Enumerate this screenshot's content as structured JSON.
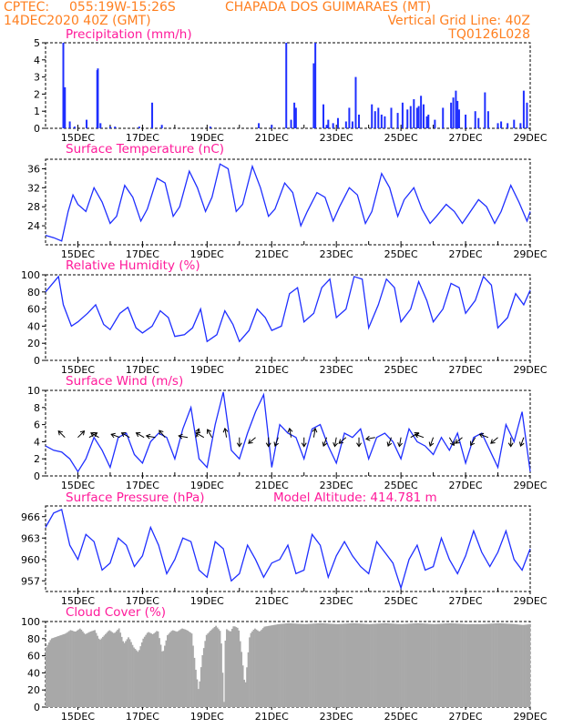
{
  "header": {
    "line1_left": "CPTEC:",
    "line1_coords": "055:19W-15:26S",
    "line1_station": "CHAPADA DOS GUIMARAES (MT)",
    "line2_date": "14DEC2020 40Z (GMT)",
    "line2_grid": "Vertical Grid Line: 40Z",
    "line3_code": "TQ0126L028"
  },
  "colors": {
    "header": "#ff7f1f",
    "title": "#ff1a9a",
    "series": "#1f2fff",
    "cloud": "#a8a8a8",
    "axis": "#000000"
  },
  "x_axis": {
    "labels": [
      "15DEC",
      "17DEC",
      "19DEC",
      "21DEC",
      "23DEC",
      "25DEC",
      "27DEC",
      "29DEC"
    ],
    "day_start": 14,
    "day_end": 29
  },
  "chart_data": [
    {
      "type": "bar",
      "title": "Precipitation (mm/h)",
      "ylim": [
        0,
        5
      ],
      "yticks": [
        0,
        1,
        2,
        3,
        4,
        5
      ],
      "x": [
        14.55,
        14.6,
        14.75,
        14.9,
        15.27,
        15.6,
        15.62,
        15.7,
        16.0,
        16.15,
        16.9,
        17.3,
        17.6,
        19.1,
        20.6,
        21.0,
        21.45,
        21.6,
        21.7,
        21.75,
        22.3,
        22.35,
        22.6,
        22.7,
        22.75,
        22.9,
        23.05,
        23.3,
        23.4,
        23.5,
        23.6,
        23.7,
        24.1,
        24.2,
        24.3,
        24.4,
        24.5,
        24.7,
        24.9,
        25.05,
        25.2,
        25.3,
        25.4,
        25.5,
        25.55,
        25.62,
        25.7,
        25.8,
        25.85,
        26.05,
        26.3,
        26.55,
        26.62,
        26.7,
        26.75,
        26.8,
        27.0,
        27.3,
        27.4,
        27.6,
        27.7,
        28.0,
        28.1,
        28.3,
        28.5,
        28.7,
        28.8,
        28.9
      ],
      "values": [
        5.0,
        2.4,
        0.4,
        0.1,
        0.5,
        3.4,
        3.5,
        0.3,
        0.1,
        0.1,
        0.1,
        1.5,
        0.2,
        0.1,
        0.3,
        0.2,
        5.0,
        0.5,
        1.5,
        1.2,
        3.8,
        5.0,
        1.4,
        0.2,
        0.5,
        0.3,
        0.6,
        0.4,
        1.2,
        0.4,
        3.0,
        0.8,
        1.4,
        1.0,
        1.2,
        0.8,
        0.7,
        1.2,
        0.9,
        1.5,
        1.1,
        1.3,
        1.7,
        1.2,
        1.3,
        1.9,
        1.4,
        0.7,
        0.8,
        0.5,
        1.2,
        1.5,
        1.8,
        2.2,
        1.6,
        1.1,
        0.8,
        1.0,
        0.6,
        2.1,
        1.0,
        0.3,
        0.4,
        0.3,
        0.5,
        0.3,
        2.2,
        1.5
      ]
    },
    {
      "type": "line",
      "title": "Surface Temperature (nC)",
      "ylim": [
        20,
        38
      ],
      "yticks": [
        24,
        28,
        32,
        36
      ],
      "x": [
        14.0,
        14.25,
        14.5,
        14.7,
        14.85,
        15.0,
        15.25,
        15.5,
        15.75,
        16.0,
        16.2,
        16.45,
        16.7,
        16.95,
        17.15,
        17.45,
        17.7,
        17.95,
        18.15,
        18.45,
        18.7,
        18.95,
        19.15,
        19.4,
        19.65,
        19.9,
        20.1,
        20.4,
        20.65,
        20.9,
        21.1,
        21.4,
        21.65,
        21.9,
        22.1,
        22.4,
        22.65,
        22.9,
        23.1,
        23.4,
        23.65,
        23.9,
        24.1,
        24.4,
        24.65,
        24.9,
        25.1,
        25.4,
        25.65,
        25.9,
        26.1,
        26.4,
        26.65,
        26.9,
        27.1,
        27.4,
        27.65,
        27.9,
        28.1,
        28.4,
        28.65,
        28.9,
        29.0
      ],
      "values": [
        22.0,
        21.5,
        20.8,
        27.0,
        30.5,
        28.5,
        27.0,
        32.0,
        29.0,
        24.5,
        26.0,
        32.5,
        30.0,
        25.0,
        27.5,
        34.0,
        33.0,
        26.0,
        28.0,
        35.5,
        32.0,
        27.0,
        30.0,
        37.0,
        36.0,
        27.0,
        28.5,
        36.5,
        32.0,
        26.0,
        27.5,
        33.0,
        31.0,
        24.0,
        27.0,
        31.0,
        30.0,
        25.0,
        28.0,
        32.0,
        30.5,
        24.5,
        27.0,
        35.0,
        32.0,
        26.0,
        29.5,
        32.0,
        27.5,
        24.5,
        26.0,
        28.5,
        27.0,
        24.5,
        26.5,
        29.5,
        28.0,
        24.5,
        27.0,
        32.5,
        29.0,
        25.0,
        27.0
      ]
    },
    {
      "type": "line",
      "title": "Relative Humidity (%)",
      "ylim": [
        0,
        100
      ],
      "yticks": [
        0,
        20,
        40,
        60,
        80,
        100
      ],
      "x": [
        14.0,
        14.4,
        14.55,
        14.8,
        15.0,
        15.3,
        15.55,
        15.8,
        16.0,
        16.3,
        16.55,
        16.8,
        17.0,
        17.3,
        17.55,
        17.8,
        18.0,
        18.3,
        18.55,
        18.8,
        19.0,
        19.3,
        19.55,
        19.8,
        20.0,
        20.3,
        20.55,
        20.8,
        21.0,
        21.3,
        21.55,
        21.8,
        22.0,
        22.3,
        22.55,
        22.8,
        23.0,
        23.3,
        23.55,
        23.8,
        24.0,
        24.3,
        24.55,
        24.8,
        25.0,
        25.3,
        25.55,
        25.8,
        26.0,
        26.3,
        26.55,
        26.8,
        27.0,
        27.3,
        27.55,
        27.8,
        28.0,
        28.3,
        28.55,
        28.8,
        29.0
      ],
      "values": [
        80.0,
        98.0,
        65.0,
        40.0,
        45.0,
        55.0,
        65.0,
        42.0,
        36.0,
        55.0,
        62.0,
        38.0,
        32.0,
        40.0,
        58.0,
        50.0,
        28.0,
        30.0,
        38.0,
        60.0,
        22.0,
        30.0,
        58.0,
        42.0,
        22.0,
        35.0,
        60.0,
        50.0,
        35.0,
        40.0,
        78.0,
        85.0,
        45.0,
        55.0,
        85.0,
        95.0,
        50.0,
        60.0,
        98.0,
        95.0,
        38.0,
        65.0,
        95.0,
        85.0,
        45.0,
        60.0,
        92.0,
        70.0,
        45.0,
        60.0,
        90.0,
        85.0,
        55.0,
        70.0,
        98.0,
        88.0,
        38.0,
        50.0,
        78.0,
        65.0,
        82.0
      ]
    },
    {
      "type": "line",
      "title": "Surface Wind (m/s)",
      "ylim": [
        0,
        10
      ],
      "yticks": [
        0,
        2,
        4,
        6,
        8,
        10
      ],
      "x": [
        14.0,
        14.25,
        14.5,
        14.75,
        15.0,
        15.25,
        15.5,
        15.75,
        16.0,
        16.25,
        16.5,
        16.75,
        17.0,
        17.25,
        17.5,
        17.75,
        18.0,
        18.25,
        18.5,
        18.75,
        19.0,
        19.25,
        19.5,
        19.75,
        20.0,
        20.25,
        20.5,
        20.75,
        21.0,
        21.25,
        21.5,
        21.75,
        22.0,
        22.25,
        22.5,
        22.75,
        23.0,
        23.25,
        23.5,
        23.75,
        24.0,
        24.25,
        24.5,
        24.75,
        25.0,
        25.25,
        25.5,
        25.75,
        26.0,
        26.25,
        26.5,
        26.75,
        27.0,
        27.25,
        27.5,
        27.75,
        28.0,
        28.25,
        28.5,
        28.75,
        29.0
      ],
      "values": [
        3.5,
        3.0,
        2.8,
        2.0,
        0.5,
        2.0,
        4.5,
        3.0,
        1.0,
        4.5,
        5.0,
        2.5,
        1.5,
        4.0,
        5.0,
        4.5,
        2.0,
        5.5,
        8.0,
        2.0,
        1.0,
        6.0,
        9.8,
        3.0,
        2.0,
        5.0,
        7.5,
        9.5,
        1.0,
        6.0,
        5.0,
        4.5,
        2.0,
        5.5,
        6.0,
        3.5,
        1.5,
        5.0,
        4.5,
        5.5,
        2.0,
        4.5,
        5.0,
        4.0,
        2.0,
        5.5,
        4.0,
        3.5,
        2.5,
        4.5,
        3.0,
        5.0,
        1.5,
        4.5,
        5.0,
        3.0,
        1.0,
        6.0,
        4.0,
        7.5,
        0.5
      ],
      "arrows_x": [
        14.6,
        15.0,
        15.35,
        15.65,
        16.3,
        16.6,
        17.05,
        17.4,
        17.7,
        18.4,
        18.65,
        18.9,
        19.15,
        19.6,
        20.0,
        20.5,
        20.9,
        21.2,
        21.6,
        22.0,
        22.3,
        22.7,
        23.0,
        23.3,
        23.7,
        24.2,
        24.7,
        25.0,
        25.3,
        25.7,
        26.0,
        26.5,
        26.9,
        27.3,
        27.7,
        28.0,
        28.4,
        28.8
      ],
      "arrows_dir": [
        315,
        45,
        60,
        300,
        290,
        300,
        300,
        280,
        320,
        280,
        20,
        300,
        330,
        350,
        180,
        230,
        180,
        200,
        350,
        180,
        10,
        200,
        190,
        230,
        180,
        260,
        200,
        190,
        60,
        290,
        200,
        150,
        230,
        210,
        290,
        230,
        180,
        200
      ]
    },
    {
      "type": "line",
      "title": "Surface Pressure (hPa)",
      "subtitle": "Model Altitude: 414.781 m",
      "ylim": [
        955.5,
        967.5
      ],
      "yticks": [
        957,
        960,
        963,
        966
      ],
      "x": [
        14.0,
        14.25,
        14.5,
        14.75,
        15.0,
        15.25,
        15.5,
        15.75,
        16.0,
        16.25,
        16.5,
        16.75,
        17.0,
        17.25,
        17.5,
        17.75,
        18.0,
        18.25,
        18.5,
        18.75,
        19.0,
        19.25,
        19.5,
        19.75,
        20.0,
        20.25,
        20.5,
        20.75,
        21.0,
        21.25,
        21.5,
        21.75,
        22.0,
        22.25,
        22.5,
        22.75,
        23.0,
        23.25,
        23.5,
        23.75,
        24.0,
        24.25,
        24.5,
        24.75,
        25.0,
        25.25,
        25.5,
        25.75,
        26.0,
        26.25,
        26.5,
        26.75,
        27.0,
        27.25,
        27.5,
        27.75,
        28.0,
        28.25,
        28.5,
        28.75,
        29.0
      ],
      "values": [
        964.5,
        966.5,
        967.0,
        962.0,
        960.0,
        963.5,
        962.5,
        958.5,
        959.5,
        963.0,
        962.0,
        959.0,
        960.5,
        964.5,
        962.0,
        958.0,
        960.0,
        963.0,
        962.5,
        958.5,
        957.5,
        962.5,
        961.5,
        957.0,
        958.0,
        962.0,
        960.0,
        957.5,
        959.5,
        960.0,
        962.0,
        958.0,
        958.5,
        963.5,
        962.0,
        957.5,
        960.5,
        962.5,
        960.5,
        959.0,
        958.0,
        962.5,
        961.0,
        959.5,
        956.0,
        960.0,
        962.0,
        958.5,
        959.0,
        963.0,
        960.0,
        958.0,
        960.5,
        964.0,
        961.0,
        959.0,
        961.0,
        964.0,
        960.0,
        958.5,
        961.5
      ]
    },
    {
      "type": "area",
      "title": "Cloud Cover (%)",
      "ylim": [
        0,
        100
      ],
      "yticks": [
        0,
        20,
        40,
        60,
        80,
        100
      ],
      "x": [
        14.0,
        14.15,
        14.3,
        14.45,
        14.6,
        14.75,
        14.9,
        15.05,
        15.2,
        15.35,
        15.5,
        15.65,
        15.8,
        15.95,
        16.1,
        16.25,
        16.4,
        16.55,
        16.7,
        16.85,
        17.0,
        17.15,
        17.3,
        17.45,
        17.6,
        17.75,
        17.9,
        18.05,
        18.2,
        18.35,
        18.5,
        18.62,
        18.72,
        18.82,
        18.95,
        19.1,
        19.25,
        19.4,
        19.5,
        19.55,
        19.62,
        19.7,
        19.8,
        19.95,
        20.05,
        20.15,
        20.3,
        20.45,
        20.6,
        20.75,
        20.9,
        21.05,
        21.2,
        21.5,
        22.0,
        22.5,
        23.0,
        23.5,
        24.0,
        24.5,
        25.0,
        25.5,
        26.0,
        26.5,
        27.0,
        27.5,
        28.0,
        28.5,
        28.75,
        29.0
      ],
      "values": [
        70,
        80,
        82,
        84,
        86,
        90,
        88,
        92,
        85,
        88,
        90,
        78,
        84,
        90,
        86,
        92,
        74,
        82,
        70,
        64,
        80,
        88,
        85,
        90,
        62,
        84,
        90,
        88,
        92,
        90,
        86,
        45,
        18,
        58,
        84,
        90,
        95,
        88,
        6,
        92,
        90,
        88,
        95,
        92,
        62,
        22,
        85,
        92,
        88,
        94,
        95,
        96,
        97,
        98,
        97,
        98,
        97,
        98,
        97,
        98,
        97,
        98,
        97,
        98,
        97,
        97,
        98,
        97,
        96,
        97
      ]
    }
  ]
}
